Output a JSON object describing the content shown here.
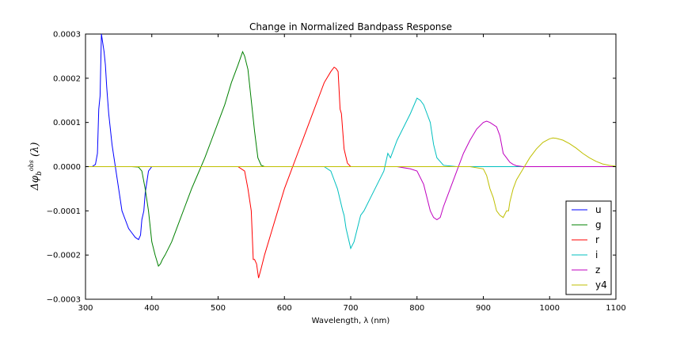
{
  "chart_data": {
    "type": "line",
    "title": "Change in Normalized Bandpass Response",
    "xlabel": "Wavelength, λ (nm)",
    "ylabel": "Δφ_b^obs (λ)",
    "xlim": [
      300,
      1100
    ],
    "ylim": [
      -0.0003,
      0.0003
    ],
    "xticks": [
      300,
      400,
      500,
      600,
      700,
      800,
      900,
      1000,
      1100
    ],
    "yticks": [
      -0.0003,
      -0.0002,
      -0.0001,
      0.0,
      0.0001,
      0.0002,
      0.0003
    ],
    "ytick_labels": [
      "−0.0003",
      "−0.0002",
      "−0.0001",
      "0.0000",
      "0.0001",
      "0.0002",
      "0.0003"
    ],
    "grid": false,
    "legend_position": "lower-right",
    "series": [
      {
        "name": "u",
        "color": "#0000ff",
        "x": [
          300,
          310,
          315,
          318,
          320,
          322,
          324,
          326,
          328,
          330,
          332,
          335,
          340,
          345,
          350,
          355,
          360,
          365,
          370,
          375,
          380,
          383,
          385,
          388,
          390,
          393,
          395,
          400,
          410,
          420
        ],
        "y": [
          0,
          0,
          5e-06,
          3e-05,
          0.00013,
          0.00016,
          0.0003,
          0.00028,
          0.00026,
          0.00023,
          0.00018,
          0.00012,
          5e-05,
          0.0,
          -5e-05,
          -0.0001,
          -0.00012,
          -0.00014,
          -0.00015,
          -0.00016,
          -0.000165,
          -0.000155,
          -0.00012,
          -0.0001,
          -6e-05,
          -3e-05,
          -1e-05,
          0.0,
          0.0,
          0.0
        ]
      },
      {
        "name": "g",
        "color": "#008000",
        "x": [
          300,
          370,
          380,
          385,
          390,
          395,
          400,
          405,
          410,
          413,
          416,
          420,
          430,
          440,
          450,
          460,
          470,
          480,
          490,
          500,
          510,
          520,
          530,
          537,
          540,
          545,
          550,
          555,
          560,
          565,
          570,
          600,
          1100
        ],
        "y": [
          0,
          0,
          -1e-06,
          -1e-05,
          -5e-05,
          -0.0001,
          -0.00017,
          -0.0002,
          -0.000225,
          -0.00022,
          -0.00021,
          -0.0002,
          -0.00017,
          -0.00013,
          -9e-05,
          -5e-05,
          -1.5e-05,
          2e-05,
          6e-05,
          0.0001,
          0.00014,
          0.00019,
          0.00023,
          0.00026,
          0.00025,
          0.00022,
          0.00015,
          8e-05,
          2e-05,
          3e-06,
          0.0,
          0.0,
          0.0
        ]
      },
      {
        "name": "r",
        "color": "#ff0000",
        "x": [
          300,
          530,
          540,
          545,
          550,
          553,
          555,
          558,
          561,
          565,
          570,
          580,
          590,
          600,
          610,
          620,
          630,
          640,
          650,
          660,
          670,
          675,
          678,
          681,
          684,
          686,
          688,
          690,
          695,
          700,
          710,
          1100
        ],
        "y": [
          0,
          0,
          -1e-05,
          -5e-05,
          -0.0001,
          -0.00021,
          -0.00021,
          -0.00022,
          -0.000252,
          -0.00023,
          -0.0002,
          -0.00015,
          -0.0001,
          -5e-05,
          -1e-05,
          3e-05,
          7e-05,
          0.00011,
          0.00015,
          0.00019,
          0.000215,
          0.000225,
          0.000222,
          0.000215,
          0.00013,
          0.00012,
          8e-05,
          4e-05,
          8e-06,
          0.0,
          0.0,
          0.0
        ]
      },
      {
        "name": "i",
        "color": "#00bfbf",
        "x": [
          300,
          660,
          670,
          675,
          680,
          688,
          690,
          693,
          700,
          705,
          710,
          715,
          720,
          730,
          740,
          750,
          756,
          760,
          770,
          780,
          790,
          800,
          805,
          810,
          815,
          820,
          822,
          825,
          830,
          840,
          860,
          1100
        ],
        "y": [
          0,
          0,
          -1e-05,
          -3e-05,
          -5e-05,
          -0.0001,
          -0.00011,
          -0.00014,
          -0.000185,
          -0.00017,
          -0.00014,
          -0.00011,
          -0.0001,
          -7e-05,
          -4e-05,
          -1e-05,
          3e-05,
          2e-05,
          6e-05,
          9e-05,
          0.00012,
          0.000155,
          0.00015,
          0.00014,
          0.00012,
          0.0001,
          8e-05,
          5e-05,
          2e-05,
          3e-06,
          0.0,
          0.0
        ]
      },
      {
        "name": "z",
        "color": "#bf00bf",
        "x": [
          300,
          770,
          790,
          800,
          810,
          815,
          820,
          825,
          830,
          835,
          840,
          850,
          860,
          870,
          880,
          890,
          900,
          905,
          910,
          920,
          925,
          930,
          935,
          940,
          945,
          950,
          960,
          1000,
          1100
        ],
        "y": [
          0,
          0,
          -5e-06,
          -1e-05,
          -4e-05,
          -7e-05,
          -0.0001,
          -0.000115,
          -0.00012,
          -0.000115,
          -9e-05,
          -5e-05,
          -1e-05,
          3e-05,
          6e-05,
          8.5e-05,
          0.0001,
          0.000103,
          0.0001,
          9e-05,
          7e-05,
          3e-05,
          2e-05,
          1e-05,
          5e-06,
          2e-06,
          0.0,
          0.0,
          0.0
        ]
      },
      {
        "name": "y4",
        "color": "#bfbf00",
        "x": [
          300,
          880,
          900,
          905,
          910,
          915,
          920,
          925,
          930,
          935,
          938,
          940,
          945,
          950,
          960,
          970,
          980,
          990,
          1000,
          1005,
          1010,
          1020,
          1030,
          1040,
          1050,
          1060,
          1070,
          1080,
          1090,
          1100
        ],
        "y": [
          0,
          0,
          -5e-06,
          -2e-05,
          -5e-05,
          -7e-05,
          -0.0001,
          -0.00011,
          -0.000115,
          -0.0001,
          -0.0001,
          -8e-05,
          -5e-05,
          -3e-05,
          -5e-06,
          2e-05,
          4e-05,
          5.5e-05,
          6.3e-05,
          6.5e-05,
          6.4e-05,
          6e-05,
          5.2e-05,
          4.2e-05,
          3e-05,
          2e-05,
          1.2e-05,
          6e-06,
          3e-06,
          1e-06
        ]
      }
    ]
  }
}
